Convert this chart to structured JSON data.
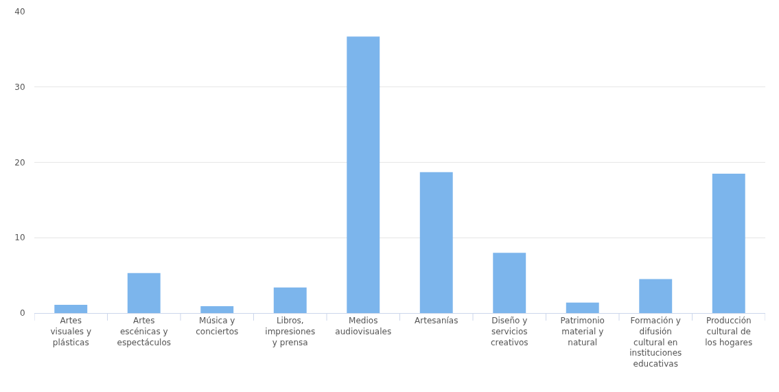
{
  "chart_data": {
    "type": "bar",
    "categories": [
      "Artes visuales y plásticas",
      "Artes escénicas y espectáculos",
      "Música y conciertos",
      "Libros, impresiones y prensa",
      "Medios audiovisuales",
      "Artesanías",
      "Diseño y servicios creativos",
      "Patrimonio material y natural",
      "Formación y difusión cultural en instituciones educativas",
      "Producción cultural de los hogares"
    ],
    "values": [
      1.1,
      5.3,
      0.9,
      3.4,
      36.7,
      18.7,
      8.0,
      1.4,
      4.5,
      18.5
    ],
    "color": "#7cb5ec",
    "ylim": [
      0,
      40
    ],
    "yticks": [
      0,
      10,
      20,
      30,
      40
    ],
    "grid": "y"
  }
}
